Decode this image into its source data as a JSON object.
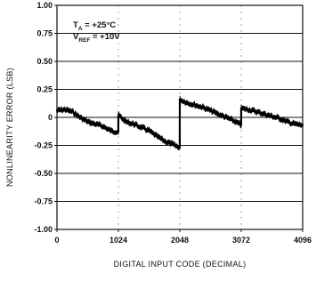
{
  "chart_data": {
    "type": "line",
    "title": "",
    "xlabel": "DIGITAL INPUT CODE (DECIMAL)",
    "ylabel": "NONLINEARITY ERROR (LSB)",
    "xlim": [
      0,
      4096
    ],
    "ylim": [
      -1.0,
      1.0
    ],
    "x_ticks": [
      0,
      1024,
      2048,
      3072,
      4096
    ],
    "x_tick_labels": [
      "0",
      "1024",
      "2048",
      "3072",
      "4096"
    ],
    "y_ticks": [
      1.0,
      0.75,
      0.5,
      0.25,
      0,
      -0.25,
      -0.5,
      -0.75,
      -1.0
    ],
    "y_tick_labels": [
      "1.00",
      "0.75",
      "0.50",
      "0.25",
      "0",
      "-0.25",
      "-0.50",
      "-0.75",
      "-1.00"
    ],
    "grid": "horizontal",
    "annotations": [
      {
        "main": "T",
        "sub": "A",
        "rest": " = +25°C"
      },
      {
        "main": "V",
        "sub": "REF",
        "rest": " = +10V"
      }
    ],
    "series": [
      {
        "x": [
          0,
          128,
          256,
          384,
          512,
          640,
          768,
          896,
          1023,
          1024,
          1152,
          1280,
          1408,
          1536,
          1664,
          1792,
          1920,
          2047,
          2048,
          2176,
          2304,
          2432,
          2560,
          2688,
          2816,
          2944,
          3071,
          3072,
          3200,
          3328,
          3456,
          3584,
          3712,
          3840,
          3968,
          4095
        ],
        "y": [
          0.06,
          0.07,
          0.05,
          0.0,
          -0.04,
          -0.06,
          -0.08,
          -0.12,
          -0.13,
          0.02,
          -0.04,
          -0.06,
          -0.09,
          -0.12,
          -0.17,
          -0.21,
          -0.24,
          -0.27,
          0.16,
          0.13,
          0.11,
          0.09,
          0.06,
          0.03,
          0.0,
          -0.03,
          -0.07,
          0.08,
          0.07,
          0.05,
          0.03,
          0.01,
          -0.01,
          -0.04,
          -0.06,
          -0.07
        ]
      }
    ]
  }
}
